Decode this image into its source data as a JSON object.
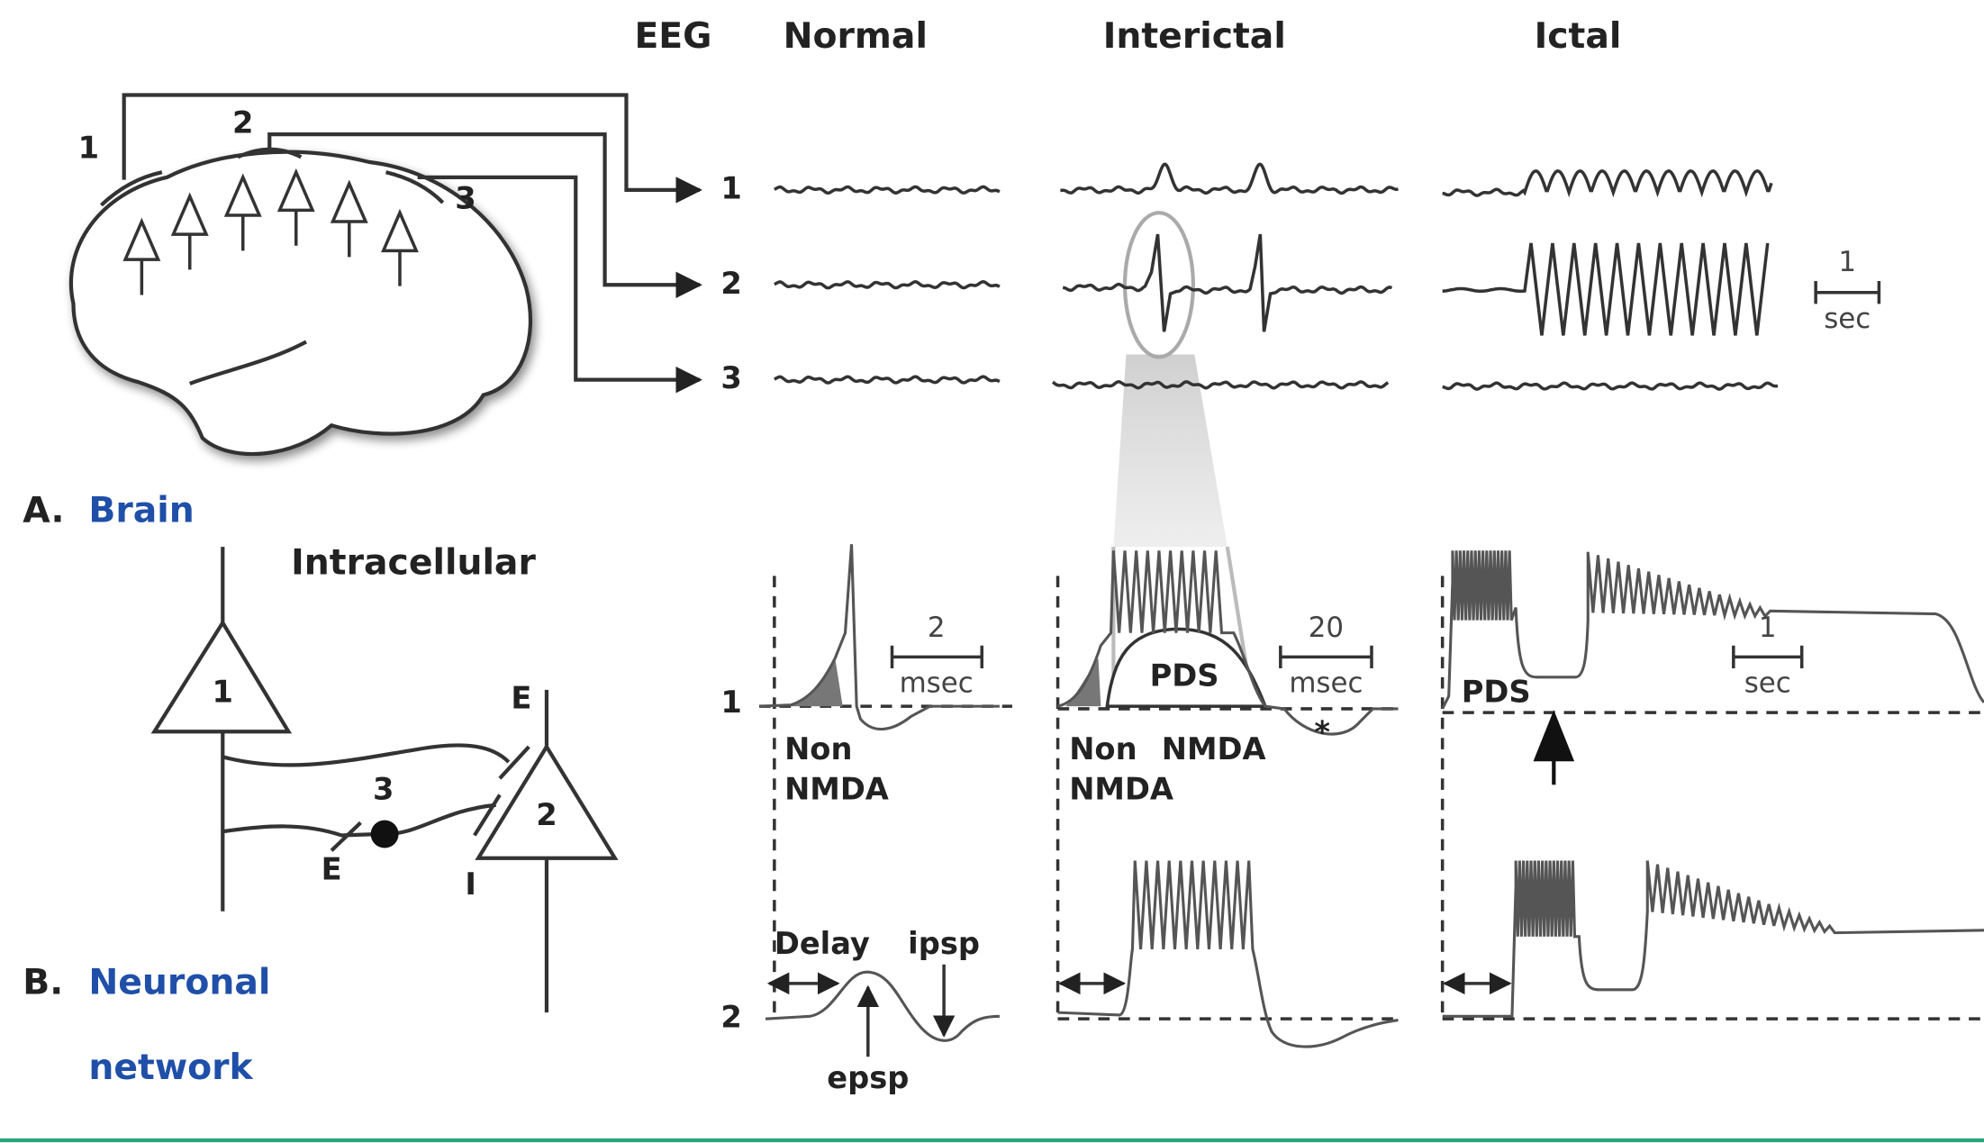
{
  "header": {
    "eeg": "EEG",
    "columns": [
      "Normal",
      "Interictal",
      "Ictal"
    ]
  },
  "brain": {
    "electrodes": [
      "1",
      "2",
      "3"
    ],
    "channels": [
      "1",
      "2",
      "3"
    ]
  },
  "eeg_scale": {
    "value": "1",
    "unit": "sec"
  },
  "panel_a": {
    "letter": "A.",
    "label": "Brain"
  },
  "intracellular": {
    "title": "Intracellular",
    "rows": [
      "1",
      "2"
    ],
    "normal": {
      "scale": {
        "value": "2",
        "unit": "msec"
      },
      "labels": [
        "Non",
        "NMDA"
      ],
      "delay": "Delay",
      "ipsp": "ipsp",
      "epsp": "epsp"
    },
    "interictal": {
      "scale": {
        "value": "20",
        "unit": "msec"
      },
      "pds": "PDS",
      "labels": [
        "Non",
        "NMDA"
      ],
      "nmda": "NMDA",
      "asterisk": "*"
    },
    "ictal": {
      "scale": {
        "value": "1",
        "unit": "sec"
      },
      "pds": "PDS"
    }
  },
  "network": {
    "neurons": [
      "1",
      "2",
      "3"
    ],
    "synapses": [
      "E",
      "E",
      "I"
    ]
  },
  "panel_b": {
    "letter": "B.",
    "label": [
      "Neuronal",
      "network"
    ]
  }
}
